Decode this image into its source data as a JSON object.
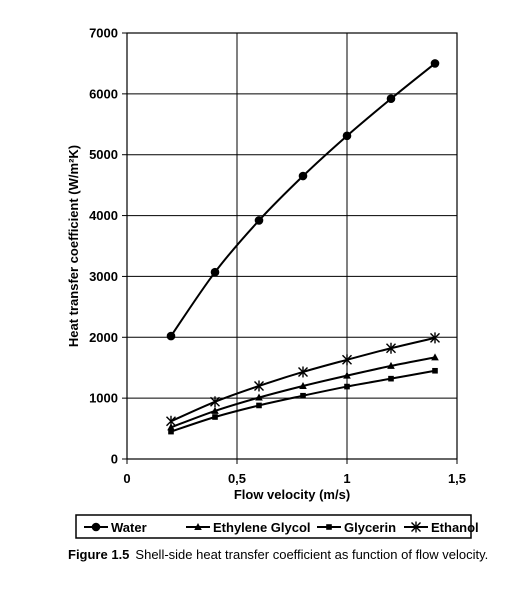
{
  "chart_data": {
    "type": "line",
    "title": "",
    "xlabel": "Flow velocity (m/s)",
    "ylabel": "Heat transfer coefficient (W/m²K)",
    "xlim": [
      0,
      1.5
    ],
    "ylim": [
      0,
      7000
    ],
    "x_ticks": [
      "0",
      "0,5",
      "1",
      "1,5"
    ],
    "y_ticks": [
      "0",
      "1000",
      "2000",
      "3000",
      "4000",
      "5000",
      "6000",
      "7000"
    ],
    "grid": true,
    "legend_position": "bottom",
    "series": [
      {
        "name": "Water",
        "marker": "circle",
        "x": [
          0.2,
          0.4,
          0.6,
          0.8,
          1.0,
          1.2,
          1.4
        ],
        "values": [
          2020,
          3070,
          3920,
          4650,
          5310,
          5920,
          6500
        ]
      },
      {
        "name": "Ethylene Glycol",
        "marker": "triangle",
        "x": [
          0.2,
          0.4,
          0.6,
          0.8,
          1.0,
          1.2,
          1.4
        ],
        "values": [
          520,
          790,
          1010,
          1200,
          1370,
          1530,
          1670
        ]
      },
      {
        "name": "Glycerin",
        "marker": "square",
        "x": [
          0.2,
          0.4,
          0.6,
          0.8,
          1.0,
          1.2,
          1.4
        ],
        "values": [
          450,
          690,
          880,
          1040,
          1190,
          1320,
          1450
        ]
      },
      {
        "name": "Ethanol",
        "marker": "asterisk",
        "x": [
          0.2,
          0.4,
          0.6,
          0.8,
          1.0,
          1.2,
          1.4
        ],
        "values": [
          620,
          940,
          1200,
          1430,
          1630,
          1820,
          1990
        ]
      }
    ]
  },
  "caption": {
    "label": "Figure 1.5",
    "text": "Shell-side heat transfer coefficient as function of flow velocity."
  },
  "colors": {
    "line": "#000000",
    "grid": "#000000",
    "background": "#ffffff"
  }
}
